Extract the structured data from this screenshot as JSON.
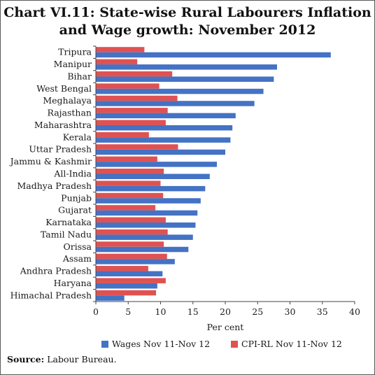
{
  "title_line1": "Chart VI.11: State-wise Rural Labourers Inflation",
  "title_line2": "and Wage growth: November 2012",
  "source_label": "Source:",
  "source_text": " Labour Bureau.",
  "chart_data": {
    "type": "bar",
    "orientation": "horizontal",
    "categories": [
      "Tripura",
      "Manipur",
      "Bihar",
      "West Bengal",
      "Meghalaya",
      "Rajasthan",
      "Maharashtra",
      "Kerala",
      "Uttar Pradesh",
      "Jammu & Kashmir",
      "All-India",
      "Madhya Pradesh",
      "Punjab",
      "Gujarat",
      "Karnataka",
      "Tamil Nadu",
      "Orissa",
      "Assam",
      "Andhra Pradesh",
      "Haryana",
      "Himachal Pradesh"
    ],
    "series": [
      {
        "name": "Wages Nov 11-Nov 12",
        "color": "#4472c4",
        "values": [
          36.3,
          28.0,
          27.5,
          25.9,
          24.5,
          21.6,
          21.1,
          20.8,
          20.0,
          18.7,
          17.6,
          16.9,
          16.2,
          15.7,
          15.4,
          15.0,
          14.3,
          12.2,
          10.3,
          9.5,
          4.4
        ]
      },
      {
        "name": "CPI-RL Nov 11-Nov 12",
        "color": "#e05252",
        "values": [
          7.5,
          6.4,
          11.8,
          9.8,
          12.6,
          11.1,
          10.8,
          8.2,
          12.7,
          9.5,
          10.5,
          10.0,
          10.4,
          9.2,
          10.8,
          11.1,
          10.5,
          11.0,
          8.1,
          10.8,
          9.3
        ]
      }
    ],
    "xlim": [
      0,
      40
    ],
    "xticks": [
      0,
      5,
      10,
      15,
      20,
      25,
      30,
      35,
      40
    ],
    "xlabel": "Per cent",
    "legend_position": "bottom"
  }
}
